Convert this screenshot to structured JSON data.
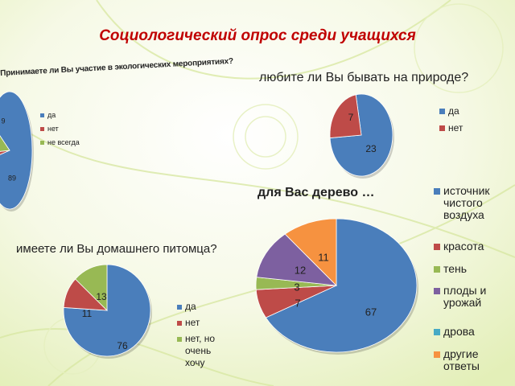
{
  "page_title": "Социологический опрос среди учащихся",
  "colors": {
    "blue": "#4a7ebb",
    "red": "#be4b48",
    "green": "#98b954",
    "purple": "#7d60a0",
    "teal": "#46aac5",
    "orange": "#f69240",
    "title": "#c00000"
  },
  "chart_data": [
    {
      "type": "pie",
      "title": "Принимаете ли Вы участие в экологических мероприятиях?",
      "categories": [
        "да",
        "нет",
        "не всегда"
      ],
      "values": [
        89,
        2,
        9
      ],
      "value_labels": [
        "89",
        "",
        "9"
      ],
      "colors": [
        "#4a7ebb",
        "#be4b48",
        "#98b954"
      ],
      "legend": "right"
    },
    {
      "type": "pie",
      "title": "любите ли Вы бывать на природе?",
      "categories": [
        "да",
        "нет"
      ],
      "values": [
        23,
        7
      ],
      "value_labels": [
        "23",
        "7"
      ],
      "colors": [
        "#4a7ebb",
        "#be4b48"
      ],
      "legend": "right"
    },
    {
      "type": "pie",
      "title": "для Вас дерево …",
      "categories": [
        "источник чистого воздуха",
        "красота",
        "тень",
        "плоды и урожай",
        "дрова",
        "другие ответы"
      ],
      "values": [
        67,
        7,
        3,
        12,
        0,
        11
      ],
      "value_labels": [
        "67",
        "7",
        "3",
        "12",
        "",
        "11"
      ],
      "colors": [
        "#4a7ebb",
        "#be4b48",
        "#98b954",
        "#7d60a0",
        "#46aac5",
        "#f69240"
      ],
      "legend": "right"
    },
    {
      "type": "pie",
      "title": "имеете ли Вы домашнего питомца?",
      "categories": [
        "да",
        "нет",
        "нет, но очень хочу"
      ],
      "values": [
        76,
        11,
        13
      ],
      "value_labels": [
        "76",
        "11",
        "13"
      ],
      "colors": [
        "#4a7ebb",
        "#be4b48",
        "#98b954"
      ],
      "legend": "right"
    }
  ]
}
